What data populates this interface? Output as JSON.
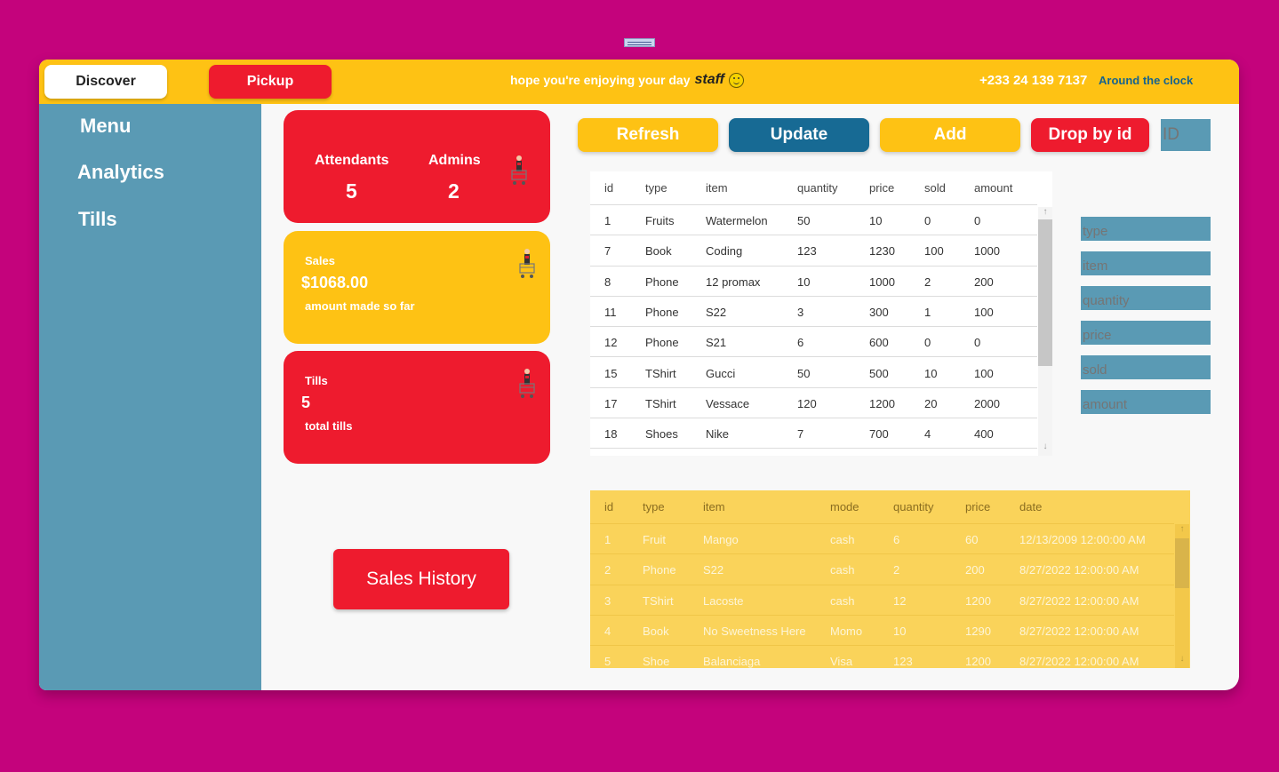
{
  "topbar": {
    "discover_label": "Discover",
    "pickup_label": "Pickup",
    "greeting": "hope you're enjoying your day",
    "greeting_name": "staff",
    "phone": "+233 24 139 7137",
    "hours_link": "Around the clock"
  },
  "sidebar": {
    "items": [
      {
        "label": "Menu"
      },
      {
        "label": "Analytics"
      },
      {
        "label": "Tills"
      }
    ]
  },
  "cards": {
    "staff": {
      "attendants_label": "Attendants",
      "attendants_value": "5",
      "admins_label": "Admins",
      "admins_value": "2"
    },
    "sales": {
      "label": "Sales",
      "value": "$1068.00",
      "caption": "amount made so far"
    },
    "tills": {
      "label": "Tills",
      "value": "5",
      "caption": "total tills"
    }
  },
  "actions": {
    "refresh": "Refresh",
    "update": "Update",
    "add": "Add",
    "drop": "Drop by id",
    "id_placeholder": "ID"
  },
  "inventory": {
    "columns": [
      "id",
      "type",
      "item",
      "quantity",
      "price",
      "sold",
      "amount"
    ],
    "rows": [
      [
        "1",
        "Fruits",
        "Watermelon",
        "50",
        "10",
        "0",
        "0"
      ],
      [
        "7",
        "Book",
        "Coding",
        "123",
        "1230",
        "100",
        "1000"
      ],
      [
        "8",
        "Phone",
        "12 promax",
        "10",
        "1000",
        "2",
        "200"
      ],
      [
        "11",
        "Phone",
        "S22",
        "3",
        "300",
        "1",
        "100"
      ],
      [
        "12",
        "Phone",
        "S21",
        "6",
        "600",
        "0",
        "0"
      ],
      [
        "15",
        "TShirt",
        "Gucci",
        "50",
        "500",
        "10",
        "100"
      ],
      [
        "17",
        "TShirt",
        "Vessace",
        "120",
        "1200",
        "20",
        "2000"
      ],
      [
        "18",
        "Shoes",
        "Nike",
        "7",
        "700",
        "4",
        "400"
      ]
    ]
  },
  "form": {
    "type_placeholder": "type",
    "item_placeholder": "item",
    "quantity_placeholder": "quantity",
    "price_placeholder": "price",
    "sold_placeholder": "sold",
    "amount_placeholder": "amount"
  },
  "sales_history_button": "Sales History",
  "history": {
    "columns": [
      "id",
      "type",
      "item",
      "mode",
      "quantity",
      "price",
      "date"
    ],
    "rows": [
      [
        "1",
        "Fruit",
        "Mango",
        "cash",
        "6",
        "60",
        "12/13/2009 12:00:00 AM"
      ],
      [
        "2",
        "Phone",
        "S22",
        "cash",
        "2",
        "200",
        "8/27/2022 12:00:00 AM"
      ],
      [
        "3",
        "TShirt",
        "Lacoste",
        "cash",
        "12",
        "1200",
        "8/27/2022 12:00:00 AM"
      ],
      [
        "4",
        "Book",
        "No Sweetness Here",
        "Momo",
        "10",
        "1290",
        "8/27/2022 12:00:00 AM"
      ],
      [
        "5",
        "Shoe",
        "Balanciaga",
        "Visa",
        "123",
        "1200",
        "8/27/2022 12:00:00 AM"
      ]
    ]
  },
  "colors": {
    "background": "#c4037c",
    "topbar": "#fec214",
    "sidebar": "#5a9ab4",
    "red": "#ee1b2e",
    "yellow": "#fec214",
    "update_blue": "#176a94",
    "history_table": "#fad35a"
  }
}
